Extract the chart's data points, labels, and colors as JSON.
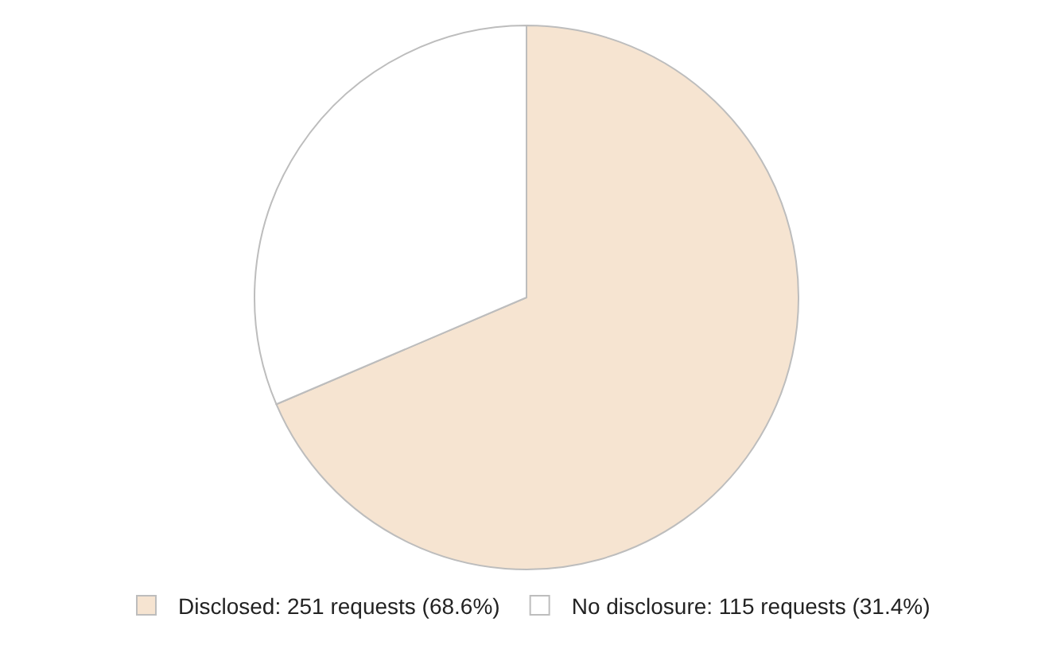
{
  "chart_data": {
    "type": "pie",
    "categories": [
      "Disclosed: 251 requests (68.6%)",
      "No disclosure: 115 requests (31.4%)"
    ],
    "values": [
      251,
      115
    ],
    "colors": [
      "#f6e4d1",
      "#ffffff"
    ],
    "legend": "bottom"
  }
}
